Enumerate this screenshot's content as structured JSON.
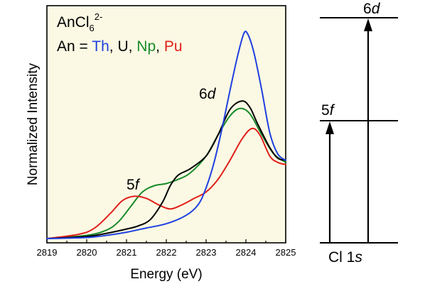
{
  "chart_data": {
    "type": "line",
    "xlabel": "Energy (eV)",
    "ylabel": "Normalized Intensity",
    "xlim": [
      2819,
      2825
    ],
    "ylim": [
      0,
      1.0
    ],
    "x_ticks": [
      "2819",
      "2820",
      "2821",
      "2822",
      "2823",
      "2824",
      "2825"
    ],
    "grid": false,
    "legend": {
      "placement": "top-left",
      "title_main": "AnCl",
      "title_sub": "6",
      "title_sup": "2-",
      "prefix": "An = ",
      "separator": ", ",
      "entries": [
        "Th",
        "U",
        "Np",
        "Pu"
      ]
    },
    "annotations": {
      "peak_6d_num": "6",
      "peak_6d_letter": "d",
      "peak_5f_num": "5",
      "peak_5f_letter": "f"
    },
    "series": [
      {
        "name": "Th",
        "color": "#1f3fe0",
        "points": [
          [
            2819.0,
            0.0
          ],
          [
            2820.0,
            0.005
          ],
          [
            2820.5,
            0.015
          ],
          [
            2821.0,
            0.03
          ],
          [
            2821.5,
            0.05
          ],
          [
            2822.0,
            0.07
          ],
          [
            2822.5,
            0.11
          ],
          [
            2822.8,
            0.16
          ],
          [
            2823.0,
            0.24
          ],
          [
            2823.2,
            0.36
          ],
          [
            2823.4,
            0.52
          ],
          [
            2823.6,
            0.7
          ],
          [
            2823.8,
            0.87
          ],
          [
            2823.95,
            0.97
          ],
          [
            2824.05,
            0.965
          ],
          [
            2824.2,
            0.88
          ],
          [
            2824.4,
            0.7
          ],
          [
            2824.6,
            0.5
          ],
          [
            2824.8,
            0.4
          ],
          [
            2825.0,
            0.37
          ]
        ]
      },
      {
        "name": "U",
        "color": "#000000",
        "points": [
          [
            2819.0,
            0.0
          ],
          [
            2820.0,
            0.01
          ],
          [
            2820.5,
            0.025
          ],
          [
            2821.0,
            0.045
          ],
          [
            2821.3,
            0.06
          ],
          [
            2821.6,
            0.09
          ],
          [
            2821.9,
            0.17
          ],
          [
            2822.1,
            0.25
          ],
          [
            2822.3,
            0.3
          ],
          [
            2822.6,
            0.33
          ],
          [
            2823.0,
            0.39
          ],
          [
            2823.3,
            0.49
          ],
          [
            2823.6,
            0.61
          ],
          [
            2823.9,
            0.65
          ],
          [
            2824.1,
            0.62
          ],
          [
            2824.3,
            0.54
          ],
          [
            2824.6,
            0.43
          ],
          [
            2824.8,
            0.38
          ],
          [
            2825.0,
            0.37
          ]
        ]
      },
      {
        "name": "Np",
        "color": "#1a8a2a",
        "points": [
          [
            2819.0,
            0.0
          ],
          [
            2820.0,
            0.015
          ],
          [
            2820.5,
            0.04
          ],
          [
            2820.8,
            0.08
          ],
          [
            2821.1,
            0.15
          ],
          [
            2821.4,
            0.22
          ],
          [
            2821.7,
            0.25
          ],
          [
            2822.0,
            0.26
          ],
          [
            2822.3,
            0.28
          ],
          [
            2822.6,
            0.31
          ],
          [
            2823.0,
            0.39
          ],
          [
            2823.3,
            0.49
          ],
          [
            2823.6,
            0.58
          ],
          [
            2823.85,
            0.615
          ],
          [
            2824.1,
            0.59
          ],
          [
            2824.4,
            0.49
          ],
          [
            2824.7,
            0.4
          ],
          [
            2825.0,
            0.36
          ]
        ]
      },
      {
        "name": "Pu",
        "color": "#e0201a",
        "points": [
          [
            2819.0,
            0.0
          ],
          [
            2819.8,
            0.02
          ],
          [
            2820.2,
            0.05
          ],
          [
            2820.6,
            0.12
          ],
          [
            2820.9,
            0.18
          ],
          [
            2821.2,
            0.2
          ],
          [
            2821.5,
            0.19
          ],
          [
            2821.8,
            0.16
          ],
          [
            2822.1,
            0.14
          ],
          [
            2822.4,
            0.16
          ],
          [
            2822.7,
            0.19
          ],
          [
            2823.0,
            0.22
          ],
          [
            2823.3,
            0.28
          ],
          [
            2823.6,
            0.37
          ],
          [
            2823.9,
            0.47
          ],
          [
            2824.15,
            0.52
          ],
          [
            2824.35,
            0.49
          ],
          [
            2824.6,
            0.39
          ],
          [
            2824.8,
            0.36
          ],
          [
            2825.0,
            0.35
          ]
        ]
      }
    ]
  },
  "diagram": {
    "level_top_num": "6",
    "level_top_letter": "d",
    "level_mid_num": "5",
    "level_mid_letter": "f",
    "level_bottom_main": "Cl 1",
    "level_bottom_letter": "s"
  }
}
